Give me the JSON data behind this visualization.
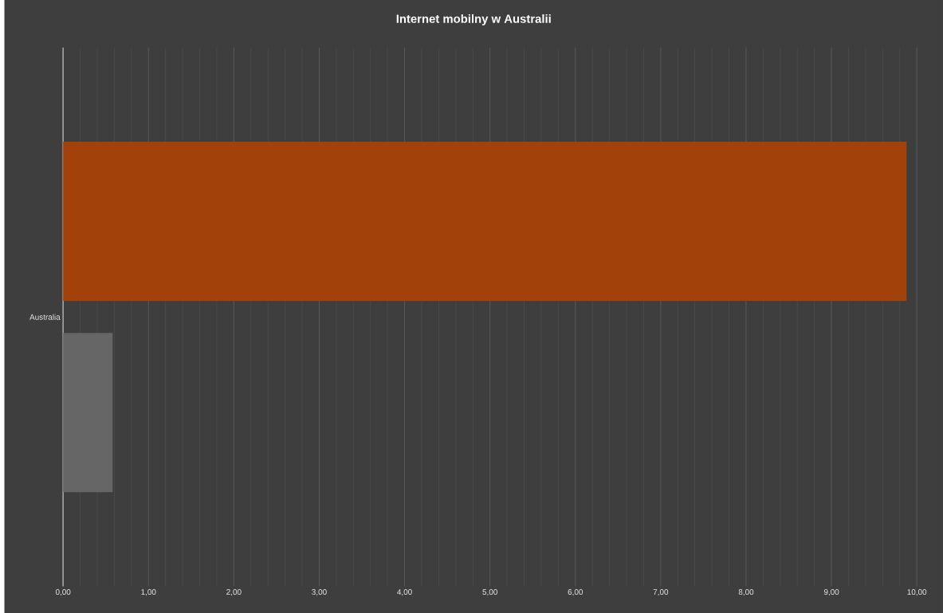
{
  "chart_data": {
    "type": "bar",
    "orientation": "horizontal",
    "title": "Internet mobilny w Australii",
    "categories": [
      "Australia"
    ],
    "series": [
      {
        "color": "#666666",
        "values": [
          0.58
        ]
      },
      {
        "color": "#a2410a",
        "values": [
          9.88
        ]
      }
    ],
    "xlim": [
      0,
      10
    ],
    "xticks": [
      {
        "value": 0,
        "label": "0,00"
      },
      {
        "value": 1,
        "label": "1,00"
      },
      {
        "value": 2,
        "label": "2,00"
      },
      {
        "value": 3,
        "label": "3,00"
      },
      {
        "value": 4,
        "label": "4,00"
      },
      {
        "value": 5,
        "label": "5,00"
      },
      {
        "value": 6,
        "label": "6,00"
      },
      {
        "value": 7,
        "label": "7,00"
      },
      {
        "value": 8,
        "label": "8,00"
      },
      {
        "value": 9,
        "label": "9,00"
      },
      {
        "value": 10,
        "label": "10,00"
      }
    ],
    "grid": "x"
  }
}
